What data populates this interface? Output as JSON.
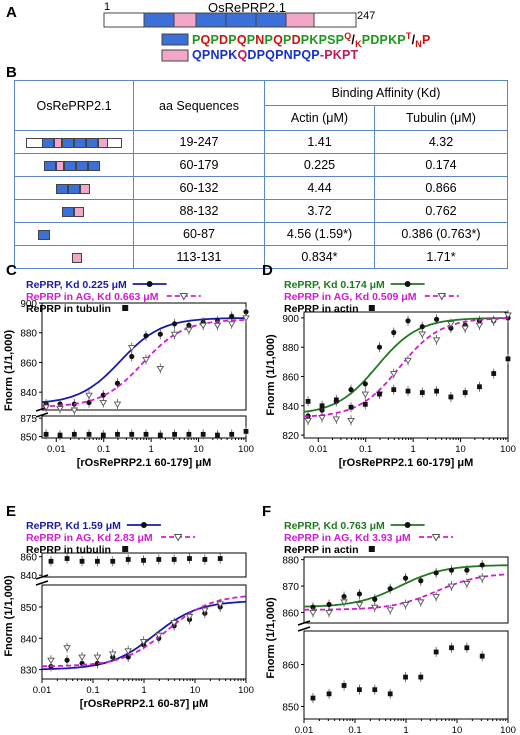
{
  "panel_labels": {
    "a": "A",
    "b": "B",
    "c": "C",
    "d": "D",
    "e": "E",
    "f": "F"
  },
  "panel_a": {
    "protein_name": "OsRePRP2.1",
    "start_residue": "1",
    "end_residue": "247",
    "seq1_segments": [
      {
        "t": "P",
        "c": "g"
      },
      {
        "t": "Q",
        "c": "r"
      },
      {
        "t": "P",
        "c": "g"
      },
      {
        "t": "D",
        "c": "r"
      },
      {
        "t": "P",
        "c": "g"
      },
      {
        "t": "Q",
        "c": "r"
      },
      {
        "t": "P",
        "c": "g"
      },
      {
        "t": "N",
        "c": "r"
      },
      {
        "t": "P",
        "c": "g"
      },
      {
        "t": "Q",
        "c": "r"
      },
      {
        "t": "P",
        "c": "g"
      },
      {
        "t": "D",
        "c": "r"
      },
      {
        "t": "P",
        "c": "g"
      },
      {
        "t": "KPSP",
        "c": "g"
      },
      {
        "t": "Q",
        "c": "r"
      },
      {
        "t": "/",
        "c": ""
      },
      {
        "t": "K",
        "c": "r"
      },
      {
        "t": "PDPKP",
        "c": "g"
      },
      {
        "t": "T",
        "c": "r"
      },
      {
        "t": "/",
        "c": ""
      },
      {
        "t": "N",
        "c": "r"
      },
      {
        "t": "P",
        "c": "r"
      }
    ],
    "seq2_segments": [
      {
        "t": "QPNPK",
        "c": "b"
      },
      {
        "t": "Q",
        "c": "m"
      },
      {
        "t": "DPQPNPQP",
        "c": "b"
      },
      {
        "t": "-PKPT",
        "c": "m"
      }
    ]
  },
  "table": {
    "header_col1": "OsRePRP2.1",
    "header_col2": "aa Sequences",
    "header_group": "Binding Affinity (Kd)",
    "header_actin": "Actin (μM)",
    "header_tubulin": "Tubulin (μM)",
    "rows": [
      {
        "seq": "19-247",
        "actin": "1.41",
        "tubulin": "4.32"
      },
      {
        "seq": "60-179",
        "actin": "0.225",
        "tubulin": "0.174"
      },
      {
        "seq": "60-132",
        "actin": "4.44",
        "tubulin": "0.866"
      },
      {
        "seq": "88-132",
        "actin": "3.72",
        "tubulin": "0.762"
      },
      {
        "seq": "60-87",
        "actin": "4.56 (1.59*)",
        "tubulin": "0.386 (0.763*)"
      },
      {
        "seq": "113-131",
        "actin": "0.834*",
        "tubulin": "1.71*"
      }
    ]
  },
  "colors": {
    "blue": "#1a1aa8",
    "magenta": "#d21ad2",
    "green": "#1f7a1f",
    "black": "#111111",
    "table_border": "#5b87c6"
  },
  "chart_data": [
    {
      "id": "C",
      "type": "scatter",
      "ylabel": "Fnorm (1/1,000)",
      "xlabel": "[rOsRePRP2.1 60-179] μM",
      "xscale": "log",
      "xlim": [
        0.005,
        100
      ],
      "x_ticks": [
        "0.01",
        "0.1",
        "1",
        "10",
        "100"
      ],
      "y_ticks_upper": [
        "840",
        "860",
        "880",
        "900"
      ],
      "y_ticks_lower": [
        "850",
        "875"
      ],
      "series": [
        {
          "name": "RePRP, Kd 0.225 μM",
          "color": "blue",
          "marker": "circle",
          "fit": {
            "kd": 0.225,
            "base": 832,
            "top": 890
          },
          "x": [
            0.0061,
            0.012,
            0.024,
            0.049,
            0.098,
            0.195,
            0.39,
            0.78,
            1.56,
            3.12,
            6.25,
            12.5,
            25,
            50,
            100
          ],
          "y": [
            832,
            832,
            832,
            833,
            838,
            846,
            864,
            878,
            879,
            886,
            885,
            887,
            888,
            891,
            894
          ]
        },
        {
          "name": "RePRP in AG, Kd 0.663 μM",
          "color": "magenta",
          "marker": "triangle",
          "fit": {
            "kd": 0.663,
            "base": 830,
            "top": 889
          },
          "x": [
            0.0061,
            0.012,
            0.024,
            0.049,
            0.098,
            0.195,
            0.39,
            0.78,
            1.56,
            3.12,
            6.25,
            12.5,
            25,
            50,
            100
          ],
          "y": [
            830,
            829,
            828,
            838,
            833,
            832,
            870,
            862,
            856,
            879,
            882,
            885,
            885,
            886,
            890
          ]
        },
        {
          "name": "RePRP in tubulin",
          "color": "black",
          "marker": "square",
          "x": [
            0.0061,
            0.012,
            0.024,
            0.049,
            0.098,
            0.195,
            0.39,
            0.78,
            1.56,
            3.12,
            6.25,
            12.5,
            25,
            50,
            100
          ],
          "y": [
            853,
            852,
            853,
            853,
            852,
            853,
            853,
            853,
            852,
            853,
            853,
            853,
            852,
            853,
            857
          ]
        }
      ]
    },
    {
      "id": "D",
      "type": "scatter",
      "ylabel": "Fnorm (1/1,000)",
      "xlabel": "[rOsRePRP2.1 60-179] μM",
      "xscale": "log",
      "xlim": [
        0.005,
        100
      ],
      "x_ticks": [
        "0.01",
        "0.1",
        "1",
        "10",
        "100"
      ],
      "y_ticks": [
        "820",
        "840",
        "860",
        "880",
        "900"
      ],
      "series": [
        {
          "name": "RePRP, Kd 0.174 μM",
          "color": "green",
          "marker": "circle",
          "fit": {
            "kd": 0.174,
            "base": 834,
            "top": 900
          },
          "x": [
            0.0061,
            0.012,
            0.024,
            0.049,
            0.098,
            0.195,
            0.39,
            0.78,
            1.56,
            3.12,
            6.25,
            12.5,
            25,
            50,
            100
          ],
          "y": [
            833,
            837,
            843,
            851,
            855,
            880,
            890,
            898,
            894,
            899,
            893,
            895,
            898,
            898,
            900
          ]
        },
        {
          "name": "RePRP in AG, Kd 0.509 μM",
          "color": "magenta",
          "marker": "triangle",
          "fit": {
            "kd": 0.509,
            "base": 832,
            "top": 900
          },
          "x": [
            0.0061,
            0.012,
            0.024,
            0.049,
            0.098,
            0.195,
            0.39,
            0.78,
            1.56,
            3.12,
            6.25,
            12.5,
            25,
            50,
            100
          ],
          "y": [
            830,
            832,
            831,
            830,
            848,
            848,
            862,
            871,
            889,
            885,
            896,
            893,
            895,
            898,
            902
          ]
        },
        {
          "name": "RePRP in actin",
          "color": "black",
          "marker": "square",
          "x": [
            0.0061,
            0.012,
            0.024,
            0.049,
            0.098,
            0.195,
            0.39,
            0.78,
            1.56,
            3.12,
            6.25,
            12.5,
            25,
            50,
            100
          ],
          "y": [
            843,
            840,
            844,
            839,
            841,
            848,
            851,
            850,
            849,
            850,
            846,
            849,
            853,
            862,
            872
          ]
        }
      ]
    },
    {
      "id": "E",
      "type": "scatter",
      "ylabel": "Fnorm (1/1,000)",
      "xlabel": "[rOsRePRP2.1 60-87] μM",
      "xscale": "log",
      "xlim": [
        0.01,
        100
      ],
      "x_ticks": [
        "0.01",
        "0.1",
        "1",
        "10",
        "100"
      ],
      "y_ticks_upper": [
        "840",
        "860"
      ],
      "y_ticks_lower": [
        "830",
        "840",
        "850"
      ],
      "series": [
        {
          "name": "RePRP, Kd 1.59 μM",
          "color": "blue",
          "marker": "circle",
          "fit": {
            "kd": 1.59,
            "base": 830,
            "top": 852
          },
          "x": [
            0.015,
            0.031,
            0.061,
            0.122,
            0.244,
            0.49,
            0.98,
            1.95,
            3.9,
            7.8,
            15.6,
            31.2
          ],
          "y": [
            831,
            833,
            832,
            832,
            834,
            834,
            838,
            840,
            844,
            846,
            848,
            850
          ]
        },
        {
          "name": "RePRP in AG, Kd 2.83 μM",
          "color": "magenta",
          "marker": "triangle",
          "fit": {
            "kd": 2.83,
            "base": 831,
            "top": 854
          },
          "x": [
            0.015,
            0.031,
            0.061,
            0.122,
            0.244,
            0.49,
            0.98,
            1.95,
            3.9,
            7.8,
            15.6,
            31.2
          ],
          "y": [
            833,
            837,
            834,
            834,
            835,
            836,
            839,
            841,
            845,
            847,
            849,
            851
          ]
        },
        {
          "name": "RePRP in tubulin",
          "color": "black",
          "marker": "square",
          "x": [
            0.015,
            0.031,
            0.061,
            0.122,
            0.244,
            0.49,
            0.98,
            1.95,
            3.9,
            7.8,
            15.6,
            31.2
          ],
          "y": [
            855,
            858,
            855,
            855,
            855,
            857,
            856,
            857,
            857,
            858,
            857,
            858
          ]
        }
      ]
    },
    {
      "id": "F",
      "type": "scatter",
      "ylabel": "Fnorm (1/1,000)",
      "xlabel": "[rOsRePRP2.1 60-87] μM",
      "xscale": "log",
      "xlim": [
        0.01,
        100
      ],
      "x_ticks": [
        "0.01",
        "0.1",
        "1",
        "10",
        "100"
      ],
      "y_ticks_upper": [
        "860",
        "870",
        "880"
      ],
      "y_ticks_lower": [
        "850",
        "860"
      ],
      "series": [
        {
          "name": "RePRP, Kd 0.763 μM",
          "color": "green",
          "marker": "circle",
          "fit": {
            "kd": 0.763,
            "base": 862,
            "top": 878
          },
          "x": [
            0.015,
            0.031,
            0.061,
            0.122,
            0.244,
            0.49,
            0.98,
            1.95,
            3.9,
            7.8,
            15.6,
            31.2
          ],
          "y": [
            862,
            863,
            866,
            867,
            865,
            869,
            873,
            872,
            875,
            876,
            876,
            878
          ]
        },
        {
          "name": "RePRP in AG, Kd 3.93 μM",
          "color": "magenta",
          "marker": "triangle",
          "fit": {
            "kd": 3.93,
            "base": 861,
            "top": 875
          },
          "x": [
            0.015,
            0.031,
            0.061,
            0.122,
            0.244,
            0.49,
            0.98,
            1.95,
            3.9,
            7.8,
            15.6,
            31.2
          ],
          "y": [
            860,
            860,
            864,
            863,
            862,
            861,
            863,
            864,
            866,
            870,
            871,
            873
          ]
        },
        {
          "name": "RePRP in actin",
          "color": "black",
          "marker": "square",
          "x": [
            0.015,
            0.031,
            0.061,
            0.122,
            0.244,
            0.49,
            0.98,
            1.95,
            3.9,
            7.8,
            15.6,
            31.2
          ],
          "y": [
            852,
            853,
            855,
            854,
            854,
            853,
            857,
            857,
            863,
            864,
            864,
            862
          ]
        }
      ]
    }
  ]
}
